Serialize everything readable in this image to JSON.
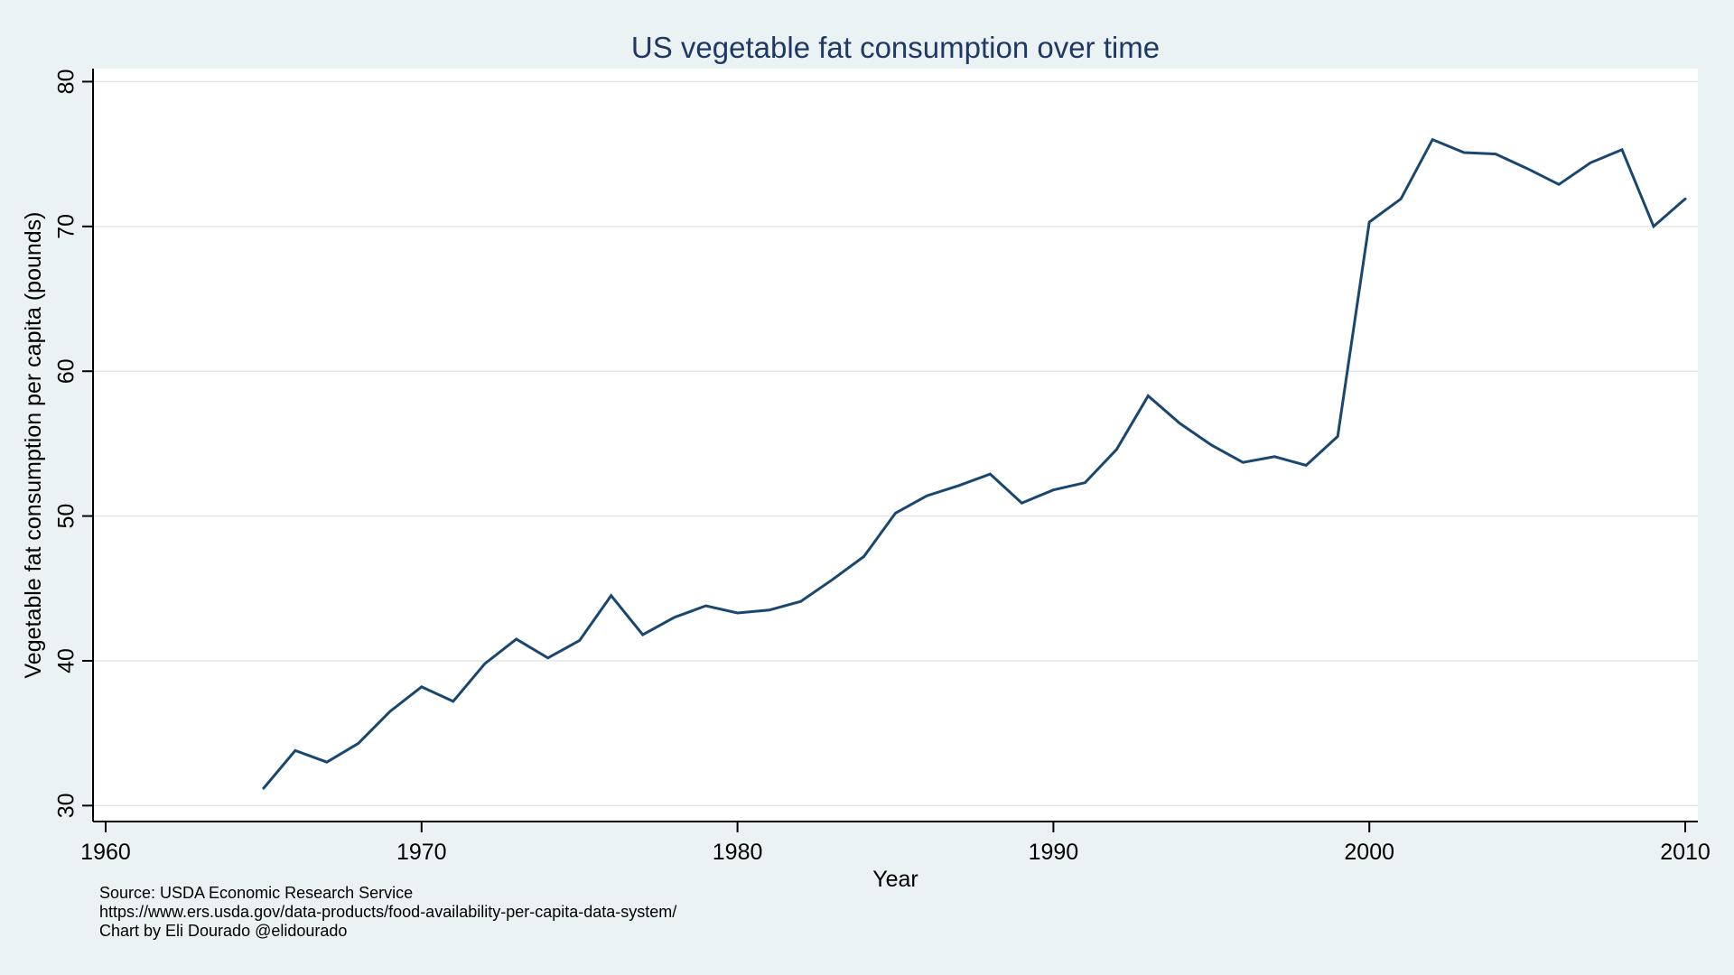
{
  "figure": {
    "title": "US vegetable fat consumption over time",
    "notes": [
      "Source: USDA Economic Research Service",
      "https://www.ers.usda.gov/data-products/food-availability-per-capita-data-system/",
      "Chart by Eli Dourado @elidourado"
    ],
    "colors": {
      "background": "#eaf2f3",
      "plot_background": "#ffffff",
      "line": "#1a476f",
      "title": "#1f3864",
      "axis": "#000000",
      "gridline": "#e6e6e6",
      "tick_text": "#000000"
    }
  },
  "chart_data": {
    "type": "line",
    "title": "US vegetable fat consumption over time",
    "xlabel": "Year",
    "ylabel": "Vegetable fat consumption per capita (pounds)",
    "x": [
      1965,
      1966,
      1967,
      1968,
      1969,
      1970,
      1971,
      1972,
      1973,
      1974,
      1975,
      1976,
      1977,
      1978,
      1979,
      1980,
      1981,
      1982,
      1983,
      1984,
      1985,
      1986,
      1987,
      1988,
      1989,
      1990,
      1991,
      1992,
      1993,
      1994,
      1995,
      1996,
      1997,
      1998,
      1999,
      2000,
      2001,
      2002,
      2003,
      2004,
      2005,
      2006,
      2007,
      2008,
      2009,
      2010
    ],
    "values": [
      31.2,
      33.8,
      33.0,
      34.3,
      36.5,
      38.2,
      37.2,
      39.8,
      41.5,
      40.2,
      41.4,
      44.5,
      41.8,
      43.0,
      43.8,
      43.3,
      43.5,
      44.1,
      45.6,
      47.2,
      50.2,
      51.4,
      52.1,
      52.9,
      50.9,
      51.8,
      52.3,
      54.6,
      58.3,
      56.4,
      54.9,
      53.7,
      54.1,
      53.5,
      55.5,
      70.3,
      71.9,
      76.0,
      75.1,
      75.0,
      74.0,
      72.9,
      74.4,
      75.3,
      70.0,
      71.9
    ],
    "x_ticks": [
      1960,
      1970,
      1980,
      1990,
      2000,
      2010
    ],
    "y_ticks": [
      30,
      40,
      50,
      60,
      70,
      80
    ],
    "xlim": [
      1959.6,
      2010.4
    ],
    "ylim": [
      28.9,
      80.9
    ],
    "grid": "horizontal",
    "legend": "none",
    "line_width": 3
  }
}
